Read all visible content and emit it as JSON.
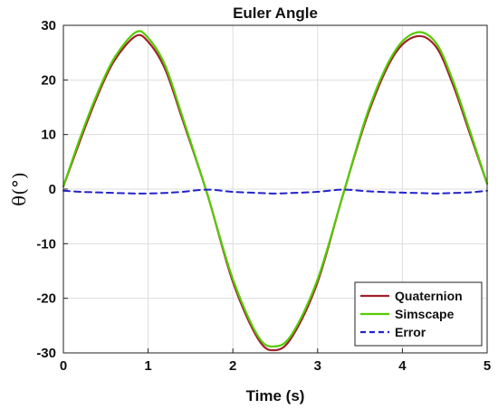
{
  "chart_data": {
    "type": "line",
    "title": "Euler Angle",
    "xlabel": "Time (s)",
    "ylabel": "θ(°)",
    "xlim": [
      0,
      5
    ],
    "ylim": [
      -30,
      30
    ],
    "xticks": [
      0,
      1,
      2,
      3,
      4,
      5
    ],
    "yticks": [
      -30,
      -20,
      -10,
      0,
      10,
      20,
      30
    ],
    "grid": true,
    "legend_position": "bottom-right",
    "series": [
      {
        "name": "Quaternion",
        "color": "#a0202a",
        "style": "solid",
        "x": [
          0,
          0.2,
          0.4,
          0.6,
          0.85,
          1.0,
          1.2,
          1.4,
          1.7,
          2.0,
          2.3,
          2.5,
          2.7,
          3.0,
          3.3,
          3.6,
          3.9,
          4.17,
          4.4,
          4.6,
          4.8,
          5.0
        ],
        "y": [
          0.5,
          9,
          17,
          23.5,
          28,
          27,
          22,
          13,
          -1,
          -17,
          -27.5,
          -29.5,
          -27,
          -17,
          -1,
          14,
          24.5,
          28,
          26,
          19,
          10,
          1
        ]
      },
      {
        "name": "Simscape",
        "color": "#55cc00",
        "style": "solid",
        "x": [
          0,
          0.2,
          0.4,
          0.6,
          0.85,
          1.0,
          1.2,
          1.4,
          1.7,
          2.0,
          2.3,
          2.5,
          2.7,
          3.0,
          3.3,
          3.6,
          3.9,
          4.17,
          4.4,
          4.6,
          4.8,
          5.0
        ],
        "y": [
          0.5,
          9.5,
          17.5,
          24,
          28.7,
          27.7,
          22.7,
          13.5,
          -1,
          -16.5,
          -27,
          -28.8,
          -26.5,
          -16.5,
          -1,
          14.5,
          25,
          28.7,
          26.7,
          19.7,
          10.5,
          1
        ]
      },
      {
        "name": "Error",
        "color": "#2222cc",
        "style": "dashed",
        "x": [
          0,
          0.2,
          0.4,
          0.6,
          0.85,
          1.0,
          1.2,
          1.4,
          1.7,
          2.0,
          2.3,
          2.5,
          2.7,
          3.0,
          3.3,
          3.6,
          3.9,
          4.17,
          4.4,
          4.6,
          4.8,
          5.0
        ],
        "y": [
          -0.3,
          -0.5,
          -0.6,
          -0.7,
          -0.8,
          -0.8,
          -0.7,
          -0.5,
          -0.1,
          -0.5,
          -0.7,
          -0.8,
          -0.7,
          -0.5,
          -0.1,
          -0.4,
          -0.6,
          -0.7,
          -0.8,
          -0.7,
          -0.6,
          -0.3
        ]
      }
    ]
  }
}
